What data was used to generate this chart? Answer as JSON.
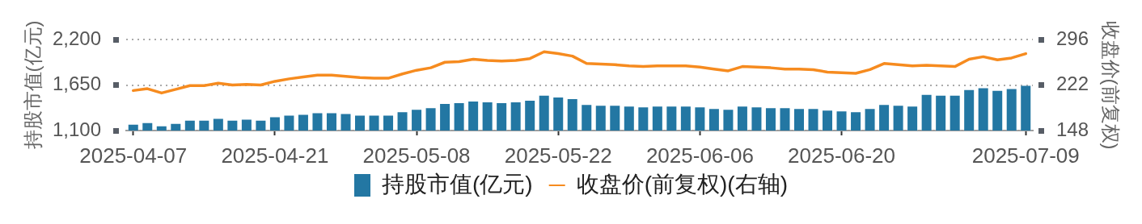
{
  "chart_data": {
    "type": "bar",
    "categories": [
      "2025-04-07",
      null,
      null,
      null,
      null,
      null,
      null,
      null,
      null,
      null,
      "2025-04-21",
      null,
      null,
      null,
      null,
      null,
      null,
      null,
      null,
      null,
      "2025-05-08",
      null,
      null,
      null,
      null,
      null,
      null,
      null,
      null,
      null,
      "2025-05-22",
      null,
      null,
      null,
      null,
      null,
      null,
      null,
      null,
      null,
      "2025-06-06",
      null,
      null,
      null,
      null,
      null,
      null,
      null,
      null,
      null,
      "2025-06-20",
      null,
      null,
      null,
      null,
      null,
      null,
      null,
      null,
      null,
      null,
      null,
      null,
      "2025-07-09"
    ],
    "series": [
      {
        "name": "持股市值(亿元)",
        "color": "#2377a3",
        "values": [
          1180,
          1200,
          1160,
          1190,
          1230,
          1230,
          1250,
          1230,
          1240,
          1230,
          1270,
          1290,
          1300,
          1320,
          1320,
          1310,
          1290,
          1290,
          1290,
          1330,
          1360,
          1380,
          1430,
          1440,
          1460,
          1450,
          1440,
          1450,
          1470,
          1530,
          1510,
          1490,
          1420,
          1410,
          1410,
          1400,
          1390,
          1400,
          1400,
          1400,
          1390,
          1370,
          1360,
          1400,
          1390,
          1380,
          1380,
          1370,
          1370,
          1350,
          1340,
          1330,
          1370,
          1420,
          1410,
          1400,
          1540,
          1530,
          1530,
          1600,
          1620,
          1590,
          1610,
          1650
        ]
      },
      {
        "name": "收盘价(前复权)(右轴)",
        "type": "line",
        "axis": "y2",
        "color": "#f68b1f",
        "values": [
          213,
          216,
          209,
          215,
          221,
          221,
          225,
          222,
          223,
          222,
          228,
          232,
          235,
          238,
          238,
          236,
          234,
          233,
          233,
          240,
          246,
          250,
          259,
          260,
          264,
          262,
          261,
          262,
          265,
          276,
          273,
          269,
          257,
          256,
          255,
          253,
          252,
          253,
          253,
          253,
          251,
          248,
          245,
          252,
          251,
          250,
          248,
          248,
          247,
          243,
          242,
          241,
          247,
          257,
          255,
          253,
          254,
          253,
          252,
          264,
          268,
          263,
          266,
          273
        ]
      }
    ],
    "ylabel": "持股市值(亿元)",
    "y2label": "收盘价(前复权)",
    "ylim": [
      1100,
      2200
    ],
    "yticks": [
      {
        "value": 1100,
        "label": "1,100"
      },
      {
        "value": 1650,
        "label": "1,650"
      },
      {
        "value": 2200,
        "label": "2,200"
      }
    ],
    "y2lim": [
      148,
      296
    ],
    "y2ticks": [
      148,
      222,
      296
    ],
    "grid": "y",
    "legend": "bottom"
  }
}
